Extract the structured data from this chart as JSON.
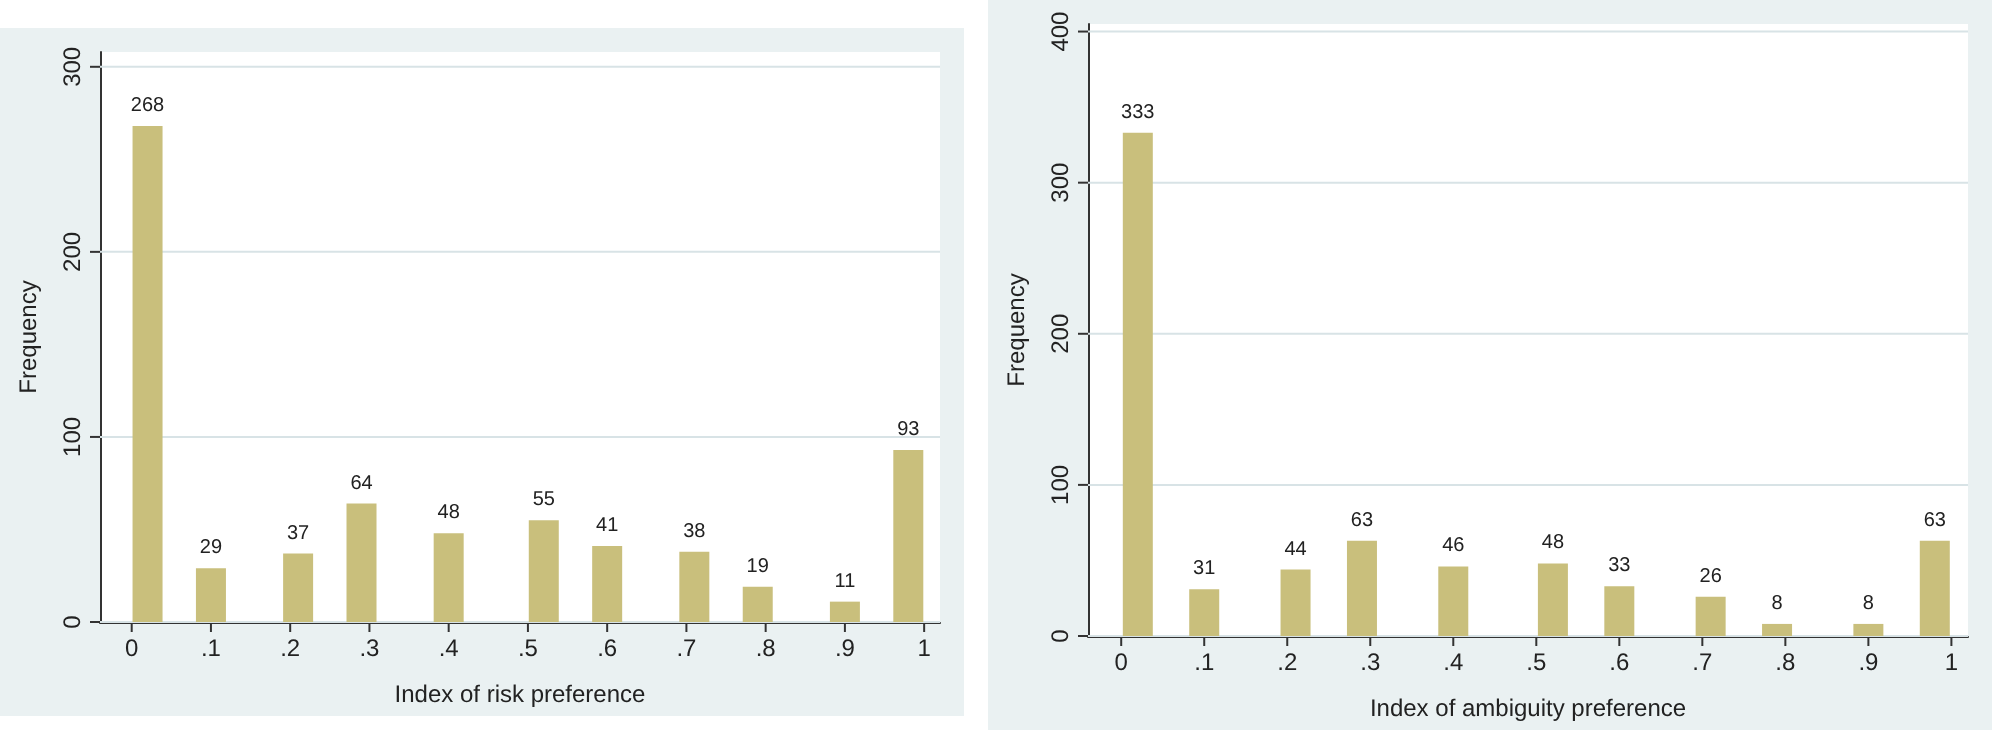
{
  "chart_data": [
    {
      "type": "bar",
      "xlabel": "Index of risk preference",
      "ylabel": "Frequency",
      "x": [
        0.02,
        0.1,
        0.21,
        0.29,
        0.4,
        0.52,
        0.6,
        0.71,
        0.79,
        0.9,
        0.98
      ],
      "values": [
        268,
        29,
        37,
        64,
        48,
        55,
        41,
        38,
        19,
        11,
        93
      ],
      "color": "#c9bf7c",
      "data_labels": true,
      "grid": "y",
      "xlim": [
        -0.04,
        1.02
      ],
      "xticks": [
        {
          "value": 0,
          "label": "0"
        },
        {
          "value": 0.1,
          "label": ".1"
        },
        {
          "value": 0.2,
          "label": ".2"
        },
        {
          "value": 0.3,
          "label": ".3"
        },
        {
          "value": 0.4,
          "label": ".4"
        },
        {
          "value": 0.5,
          "label": ".5"
        },
        {
          "value": 0.6,
          "label": ".6"
        },
        {
          "value": 0.7,
          "label": ".7"
        },
        {
          "value": 0.8,
          "label": ".8"
        },
        {
          "value": 0.9,
          "label": ".9"
        },
        {
          "value": 1,
          "label": "1"
        }
      ],
      "ylim": [
        0,
        308
      ],
      "yticks": [
        0,
        100,
        200,
        300
      ]
    },
    {
      "type": "bar",
      "xlabel": "Index of ambiguity preference",
      "ylabel": "Frequency",
      "x": [
        0.02,
        0.1,
        0.21,
        0.29,
        0.4,
        0.52,
        0.6,
        0.71,
        0.79,
        0.9,
        0.98
      ],
      "values": [
        333,
        31,
        44,
        63,
        46,
        48,
        33,
        26,
        8,
        8,
        63
      ],
      "color": "#c9bf7c",
      "data_labels": true,
      "grid": "y",
      "xlim": [
        -0.04,
        1.02
      ],
      "xticks": [
        {
          "value": 0,
          "label": "0"
        },
        {
          "value": 0.1,
          "label": ".1"
        },
        {
          "value": 0.2,
          "label": ".2"
        },
        {
          "value": 0.3,
          "label": ".3"
        },
        {
          "value": 0.4,
          "label": ".4"
        },
        {
          "value": 0.5,
          "label": ".5"
        },
        {
          "value": 0.6,
          "label": ".6"
        },
        {
          "value": 0.7,
          "label": ".7"
        },
        {
          "value": 0.8,
          "label": ".8"
        },
        {
          "value": 0.9,
          "label": ".9"
        },
        {
          "value": 1,
          "label": "1"
        }
      ],
      "ylim": [
        0,
        405
      ],
      "yticks": [
        0,
        100,
        200,
        300,
        400
      ]
    }
  ]
}
